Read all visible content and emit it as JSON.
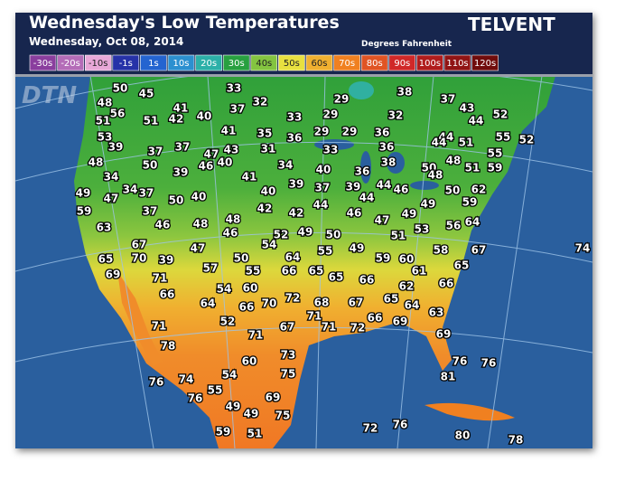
{
  "header": {
    "title": "Wednesday's Low Temperatures",
    "date": "Wednesday, Oct 08, 2014",
    "units": "Degrees Fahrenheit",
    "brand": "TELVENT",
    "watermark": "DTN"
  },
  "legend": [
    {
      "label": "-30s",
      "color": "#8a3e9e"
    },
    {
      "label": "-20s",
      "color": "#b46cb8"
    },
    {
      "label": "-10s",
      "color": "#e8a8d8"
    },
    {
      "label": "-1s",
      "color": "#2632a8"
    },
    {
      "label": "1s",
      "color": "#2464d0"
    },
    {
      "label": "10s",
      "color": "#2c90d0"
    },
    {
      "label": "20s",
      "color": "#2cb0a8"
    },
    {
      "label": "30s",
      "color": "#28a040"
    },
    {
      "label": "40s",
      "color": "#84c440"
    },
    {
      "label": "50s",
      "color": "#e8e040"
    },
    {
      "label": "60s",
      "color": "#f0b030"
    },
    {
      "label": "70s",
      "color": "#f08020"
    },
    {
      "label": "80s",
      "color": "#e05424"
    },
    {
      "label": "90s",
      "color": "#d02828"
    },
    {
      "label": "100s",
      "color": "#b01c1c"
    },
    {
      "label": "110s",
      "color": "#901414"
    },
    {
      "label": "120s",
      "color": "#700c0c"
    }
  ],
  "temperatures": [
    50,
    45,
    33,
    29,
    38,
    37,
    48,
    56,
    41,
    32,
    43,
    52,
    51,
    51,
    42,
    40,
    37,
    33,
    29,
    32,
    44,
    53,
    41,
    35,
    36,
    29,
    29,
    36,
    44,
    55,
    52,
    39,
    37,
    37,
    47,
    43,
    31,
    33,
    36,
    44,
    51,
    55,
    48,
    50,
    46,
    40,
    34,
    40,
    36,
    38,
    50,
    48,
    51,
    59,
    34,
    39,
    41,
    48,
    49,
    47,
    34,
    37,
    50,
    40,
    40,
    39,
    37,
    39,
    44,
    44,
    46,
    50,
    62,
    59,
    59,
    37,
    42,
    42,
    44,
    46,
    47,
    49,
    49,
    56,
    64,
    63,
    46,
    48,
    48,
    46,
    52,
    49,
    50,
    51,
    53,
    67,
    54,
    55,
    49,
    58,
    67,
    74,
    65,
    70,
    39,
    47,
    50,
    64,
    59,
    60,
    65,
    69,
    71,
    57,
    54,
    55,
    66,
    65,
    65,
    61,
    66,
    60,
    66,
    66,
    64,
    66,
    70,
    72,
    68,
    67,
    65,
    62,
    64,
    63,
    71,
    52,
    71,
    71,
    66,
    69,
    72,
    67,
    71,
    78,
    73,
    69,
    60,
    75,
    76,
    76,
    76,
    74,
    54,
    81,
    76,
    55,
    69,
    49,
    49,
    75,
    72,
    76,
    59,
    51,
    80,
    78
  ]
}
